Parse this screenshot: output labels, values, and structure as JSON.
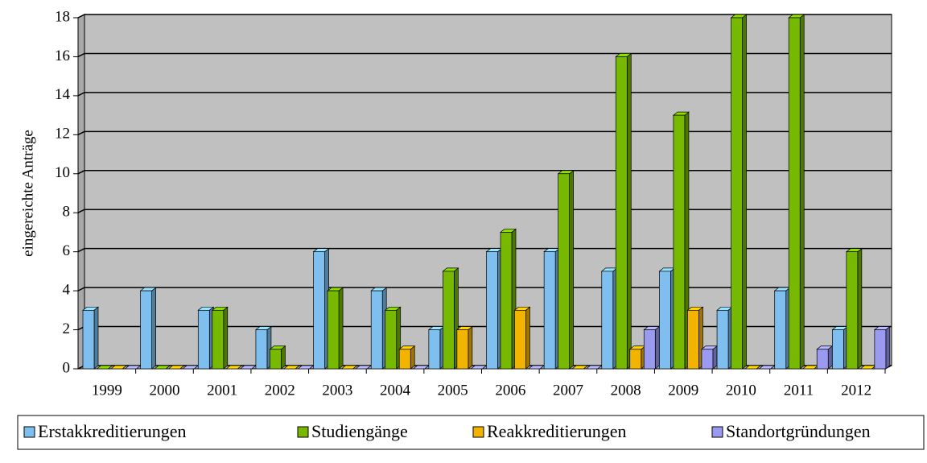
{
  "chart_data": {
    "type": "bar",
    "y_label": "eingereichte Anträge",
    "categories": [
      "1999",
      "2000",
      "2001",
      "2002",
      "2003",
      "2004",
      "2005",
      "2006",
      "2007",
      "2008",
      "2009",
      "2010",
      "2011",
      "2012"
    ],
    "series": [
      {
        "name": "Erstakkreditierungen",
        "color": "#7fbfef",
        "values": [
          3,
          4,
          3,
          2,
          6,
          4,
          2,
          6,
          6,
          5,
          5,
          3,
          4,
          2
        ]
      },
      {
        "name": "Studiengänge",
        "color": "#76b900",
        "values": [
          0,
          0,
          3,
          1,
          4,
          3,
          5,
          7,
          10,
          16,
          13,
          18,
          18,
          6
        ]
      },
      {
        "name": "Reakkreditierungen",
        "color": "#f2b400",
        "values": [
          0,
          0,
          0,
          0,
          0,
          1,
          2,
          3,
          0,
          1,
          3,
          0,
          0,
          0
        ]
      },
      {
        "name": "Standortgründungen",
        "color": "#9a9af0",
        "values": [
          0,
          0,
          0,
          0,
          0,
          0,
          0,
          0,
          0,
          2,
          1,
          0,
          1,
          2
        ]
      }
    ],
    "ylim": [
      0,
      18
    ],
    "yticks": [
      0,
      2,
      4,
      6,
      8,
      10,
      12,
      14,
      16,
      18
    ],
    "grid": true,
    "legend": "bottom"
  }
}
